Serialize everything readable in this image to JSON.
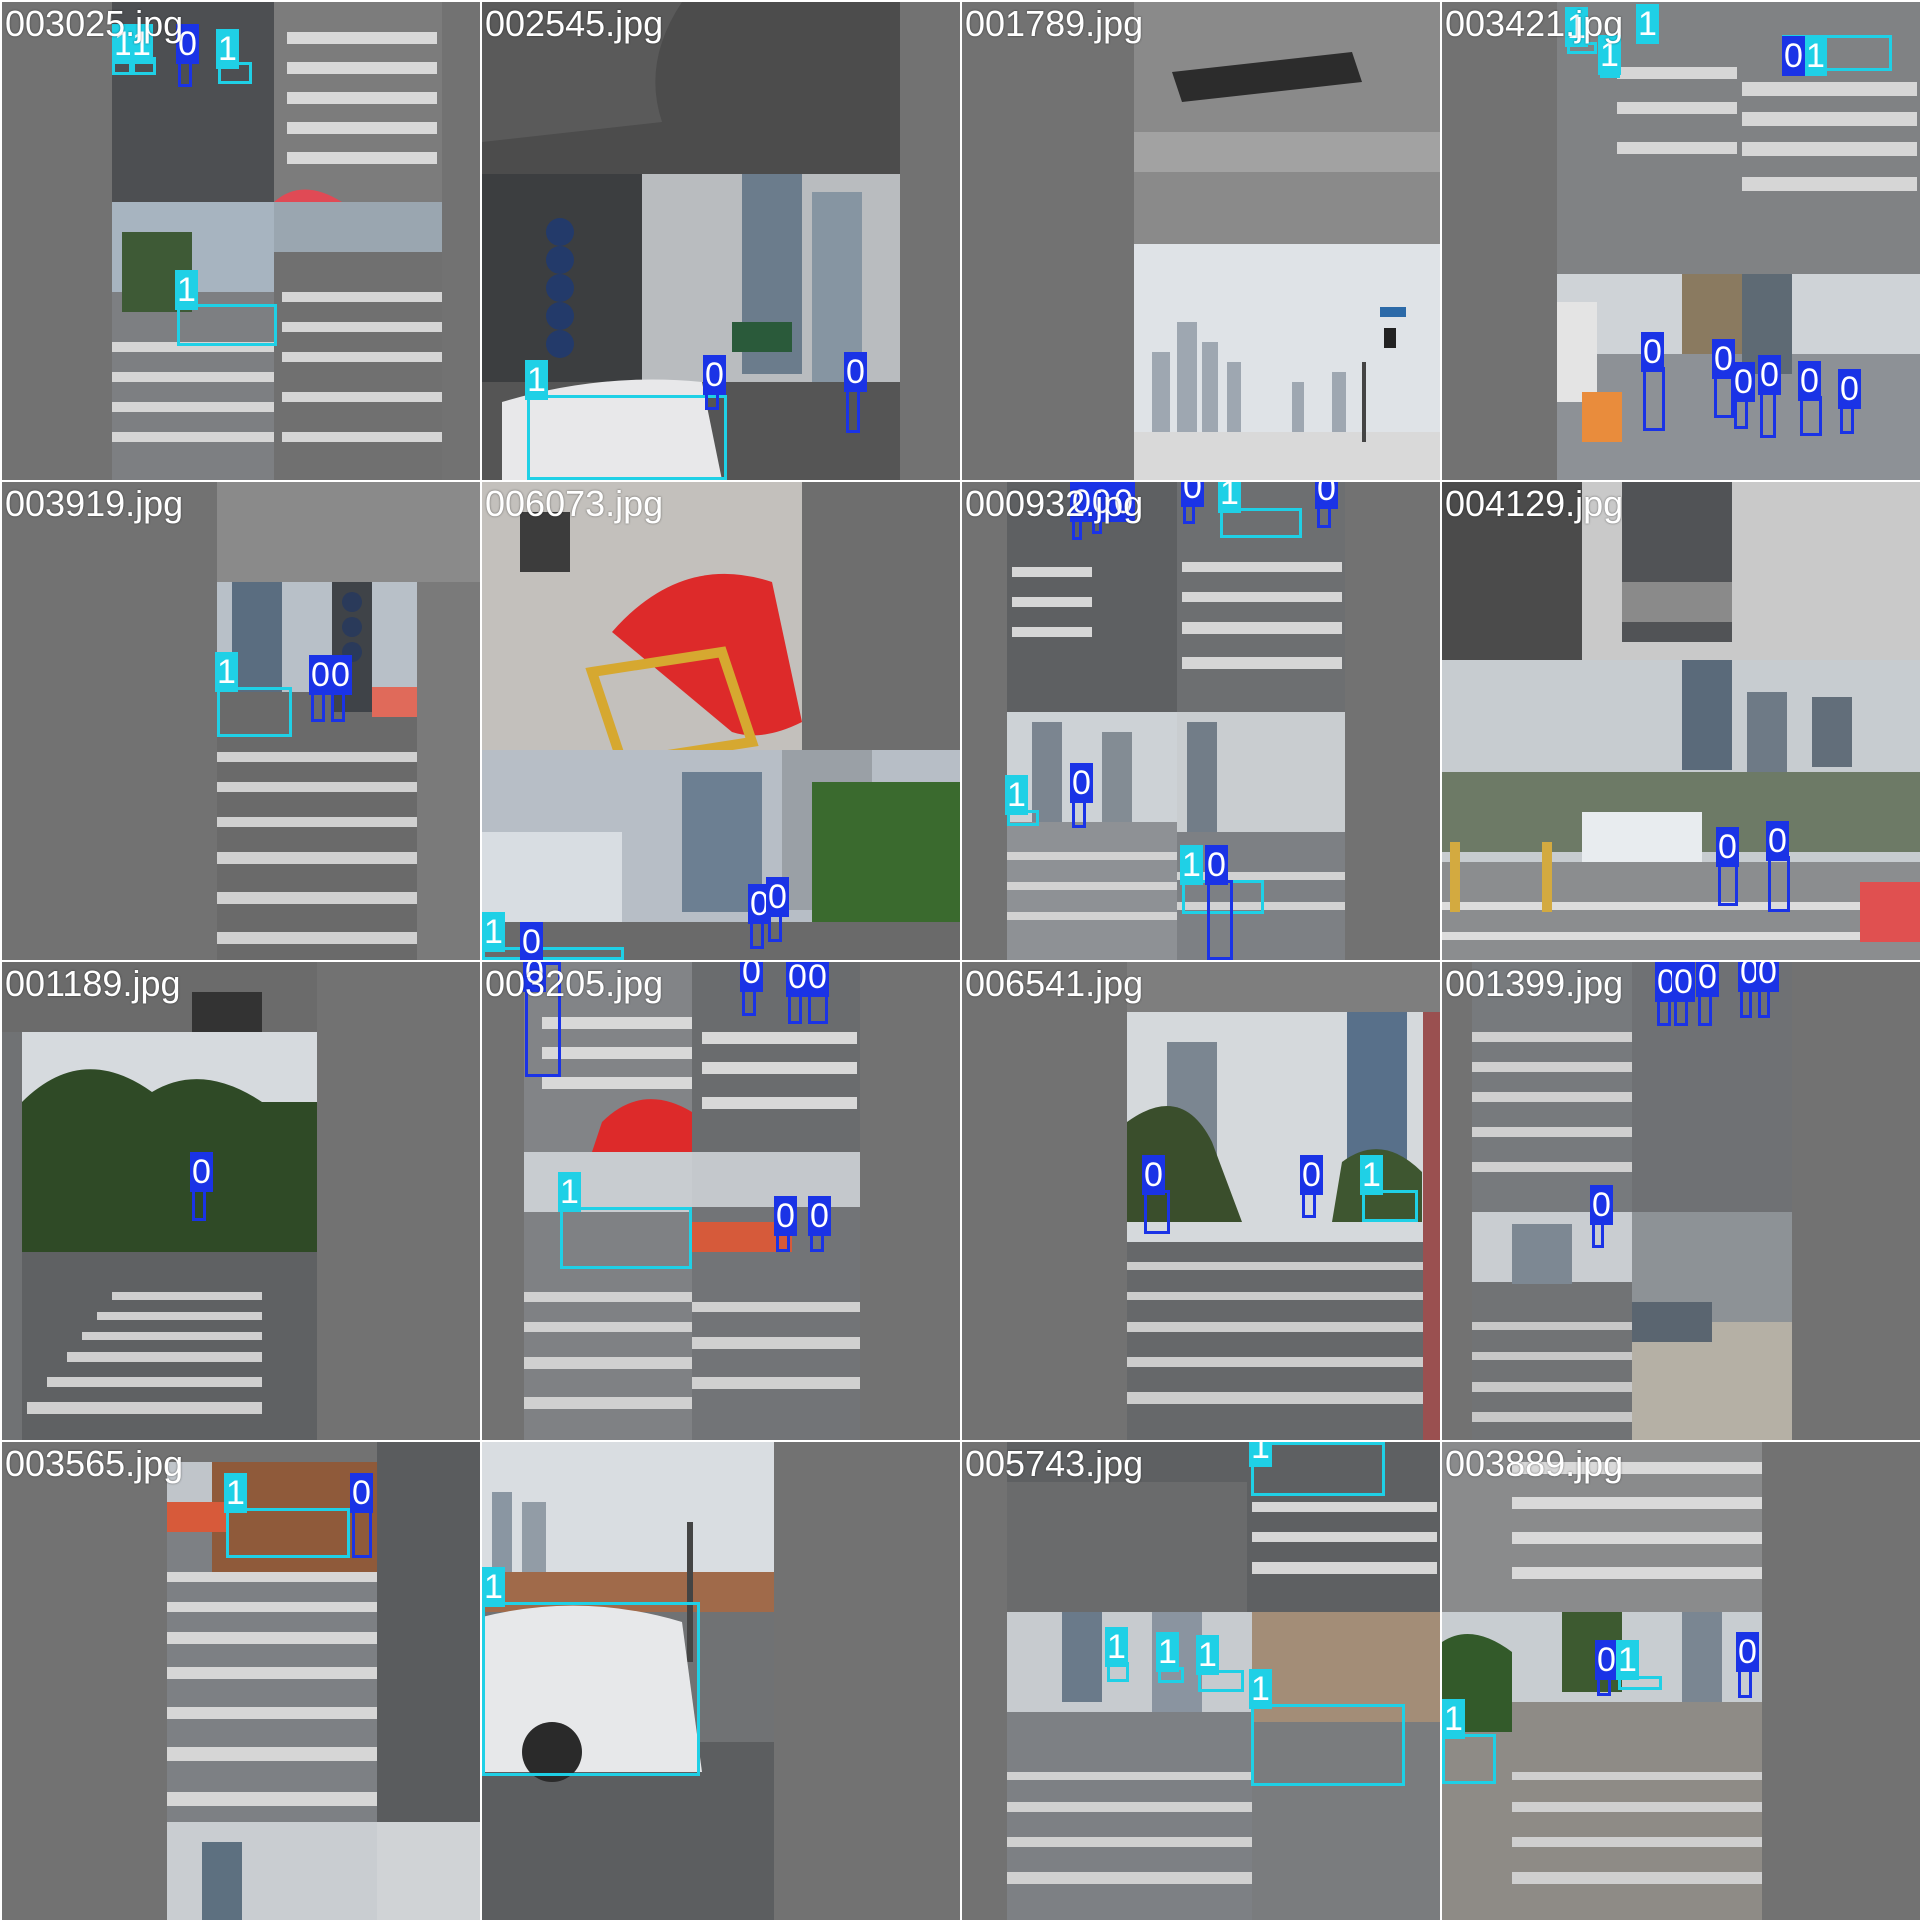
{
  "mosaic": {
    "colors": {
      "class_0": "#1a33e6",
      "class_1": "#1fd0e6",
      "pad": "#727272"
    },
    "tiles": [
      {
        "name": "003025.jpg"
      },
      {
        "name": "002545.jpg"
      },
      {
        "name": "001789.jpg"
      },
      {
        "name": "003421.jpg"
      },
      {
        "name": "003919.jpg"
      },
      {
        "name": "006073.jpg"
      },
      {
        "name": "000932.jpg"
      },
      {
        "name": "004129.jpg"
      },
      {
        "name": "001189.jpg"
      },
      {
        "name": "003205.jpg"
      },
      {
        "name": "006541.jpg"
      },
      {
        "name": "001399.jpg"
      },
      {
        "name": "003565.jpg"
      },
      {
        "name": ""
      },
      {
        "name": "005743.jpg"
      },
      {
        "name": "003889.jpg"
      }
    ]
  }
}
